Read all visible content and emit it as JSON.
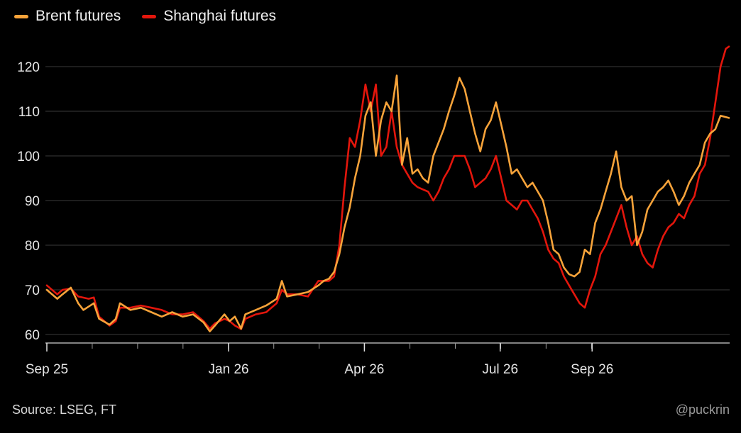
{
  "chart_data": {
    "type": "line",
    "title": "",
    "xlabel": "",
    "ylabel": "",
    "ylim": [
      58,
      126
    ],
    "yticks": [
      60,
      70,
      80,
      90,
      100,
      110,
      120
    ],
    "xticks": [
      {
        "label": "Sep 25",
        "week": 0
      },
      {
        "label": "Jan 26",
        "week": 17.4
      },
      {
        "label": "Apr 26",
        "week": 30.4
      },
      {
        "label": "Jul 26",
        "week": 43.4
      },
      {
        "label": "Sep 26",
        "week": 52.2
      }
    ],
    "x_unit": "weeks",
    "grid": true,
    "legend_position": "top-left",
    "series": [
      {
        "name": "Brent futures",
        "color": "#f7a33a",
        "points": [
          [
            0,
            70
          ],
          [
            1,
            68
          ],
          [
            1.5,
            69
          ],
          [
            2.3,
            70.5
          ],
          [
            3,
            67
          ],
          [
            3.5,
            65.5
          ],
          [
            4.5,
            67
          ],
          [
            5,
            63.5
          ],
          [
            6,
            62.2
          ],
          [
            6.6,
            63.5
          ],
          [
            7,
            67
          ],
          [
            8,
            65.5
          ],
          [
            9,
            66
          ],
          [
            10,
            65
          ],
          [
            11,
            64
          ],
          [
            12,
            65
          ],
          [
            13,
            64
          ],
          [
            14,
            64.5
          ],
          [
            15,
            62.7
          ],
          [
            15.6,
            60.7
          ],
          [
            16.1,
            62
          ],
          [
            17,
            64.5
          ],
          [
            17.5,
            63
          ],
          [
            18,
            64
          ],
          [
            18.6,
            61.3
          ],
          [
            19,
            64.5
          ],
          [
            20,
            65.5
          ],
          [
            21,
            66.5
          ],
          [
            22,
            68
          ],
          [
            22.5,
            72
          ],
          [
            23,
            68.5
          ],
          [
            24,
            69
          ],
          [
            25,
            69.5
          ],
          [
            26,
            71
          ],
          [
            26.5,
            72
          ],
          [
            27,
            72.5
          ],
          [
            27.5,
            74
          ],
          [
            28,
            78
          ],
          [
            28.5,
            84
          ],
          [
            29,
            88.5
          ],
          [
            29.5,
            95
          ],
          [
            30,
            100
          ],
          [
            30.5,
            109
          ],
          [
            31,
            112
          ],
          [
            31.5,
            100
          ],
          [
            32,
            108
          ],
          [
            32.5,
            112
          ],
          [
            33,
            110
          ],
          [
            33.5,
            118
          ],
          [
            34,
            98
          ],
          [
            34.5,
            104
          ],
          [
            35,
            96
          ],
          [
            35.5,
            97
          ],
          [
            36,
            95
          ],
          [
            36.5,
            94
          ],
          [
            37,
            100
          ],
          [
            37.5,
            103
          ],
          [
            38,
            106
          ],
          [
            38.5,
            110
          ],
          [
            39,
            113.5
          ],
          [
            39.5,
            117.5
          ],
          [
            40,
            115
          ],
          [
            40.5,
            110
          ],
          [
            41,
            105
          ],
          [
            41.5,
            101
          ],
          [
            42,
            106
          ],
          [
            42.5,
            108
          ],
          [
            43,
            112
          ],
          [
            43.5,
            107
          ],
          [
            44,
            102
          ],
          [
            44.5,
            96
          ],
          [
            45,
            97
          ],
          [
            45.5,
            95
          ],
          [
            46,
            93
          ],
          [
            46.5,
            94
          ],
          [
            47,
            92
          ],
          [
            47.5,
            90
          ],
          [
            48,
            85
          ],
          [
            48.5,
            79
          ],
          [
            49,
            78
          ],
          [
            49.5,
            75
          ],
          [
            50,
            73.5
          ],
          [
            50.5,
            73
          ],
          [
            51,
            74
          ],
          [
            51.5,
            79
          ],
          [
            52,
            78
          ],
          [
            52.5,
            85
          ],
          [
            53,
            88
          ],
          [
            53.5,
            92
          ],
          [
            54,
            96
          ],
          [
            54.5,
            101
          ],
          [
            55,
            93
          ],
          [
            55.5,
            90
          ],
          [
            56,
            91
          ],
          [
            56.5,
            80
          ],
          [
            57,
            83
          ],
          [
            57.5,
            88
          ],
          [
            58,
            90
          ],
          [
            58.5,
            92
          ],
          [
            59,
            93
          ],
          [
            59.5,
            94.5
          ],
          [
            60,
            92
          ],
          [
            60.5,
            89
          ],
          [
            61,
            91
          ],
          [
            61.5,
            94
          ],
          [
            62,
            96
          ],
          [
            62.5,
            98
          ],
          [
            63,
            103
          ],
          [
            63.5,
            105
          ],
          [
            64,
            106
          ],
          [
            64.5,
            109
          ],
          [
            65.3,
            108.5
          ]
        ]
      },
      {
        "name": "Shanghai futures",
        "color": "#e3160c",
        "points": [
          [
            0,
            71
          ],
          [
            1,
            69
          ],
          [
            1.5,
            70
          ],
          [
            2.3,
            70.3
          ],
          [
            3,
            68.5
          ],
          [
            4,
            68
          ],
          [
            4.5,
            68.3
          ],
          [
            5,
            64
          ],
          [
            6,
            62
          ],
          [
            6.6,
            63
          ],
          [
            7,
            66
          ],
          [
            8,
            66
          ],
          [
            9,
            66.5
          ],
          [
            10,
            66
          ],
          [
            11,
            65.5
          ],
          [
            12,
            64.5
          ],
          [
            13,
            64.5
          ],
          [
            14,
            65
          ],
          [
            15,
            63
          ],
          [
            15.6,
            61.3
          ],
          [
            16.1,
            62.5
          ],
          [
            17,
            63.5
          ],
          [
            17.5,
            63
          ],
          [
            18,
            62
          ],
          [
            18.6,
            61.2
          ],
          [
            19,
            63.5
          ],
          [
            20,
            64.5
          ],
          [
            21,
            65
          ],
          [
            22,
            67
          ],
          [
            22.5,
            70
          ],
          [
            23,
            69
          ],
          [
            24,
            69
          ],
          [
            25,
            68.5
          ],
          [
            26,
            72
          ],
          [
            27,
            72
          ],
          [
            27.5,
            73
          ],
          [
            28,
            80
          ],
          [
            28.5,
            93
          ],
          [
            29,
            104
          ],
          [
            29.5,
            102
          ],
          [
            30,
            108
          ],
          [
            30.5,
            116
          ],
          [
            31,
            110
          ],
          [
            31.5,
            116
          ],
          [
            32,
            100
          ],
          [
            32.5,
            102
          ],
          [
            33,
            110
          ],
          [
            33.5,
            102
          ],
          [
            34,
            98
          ],
          [
            34.5,
            96
          ],
          [
            35,
            94
          ],
          [
            35.5,
            93
          ],
          [
            36,
            92.5
          ],
          [
            36.5,
            92
          ],
          [
            37,
            90
          ],
          [
            37.5,
            92
          ],
          [
            38,
            95
          ],
          [
            38.5,
            97
          ],
          [
            39,
            100
          ],
          [
            39.5,
            100
          ],
          [
            40,
            100
          ],
          [
            40.5,
            97
          ],
          [
            41,
            93
          ],
          [
            41.5,
            94
          ],
          [
            42,
            95
          ],
          [
            42.5,
            97
          ],
          [
            43,
            100
          ],
          [
            43.5,
            95
          ],
          [
            44,
            90
          ],
          [
            44.5,
            89
          ],
          [
            45,
            88
          ],
          [
            45.5,
            90
          ],
          [
            46,
            90
          ],
          [
            46.5,
            88
          ],
          [
            47,
            86
          ],
          [
            47.5,
            83
          ],
          [
            48,
            79
          ],
          [
            48.5,
            77
          ],
          [
            49,
            76
          ],
          [
            49.5,
            73
          ],
          [
            50,
            71
          ],
          [
            50.5,
            69
          ],
          [
            51,
            67
          ],
          [
            51.5,
            66
          ],
          [
            52,
            70
          ],
          [
            52.5,
            73
          ],
          [
            53,
            78
          ],
          [
            53.5,
            80
          ],
          [
            54,
            83
          ],
          [
            54.5,
            86
          ],
          [
            55,
            89
          ],
          [
            55.5,
            84
          ],
          [
            56,
            80
          ],
          [
            56.5,
            82
          ],
          [
            57,
            78
          ],
          [
            57.5,
            76
          ],
          [
            58,
            75
          ],
          [
            58.5,
            79
          ],
          [
            59,
            82
          ],
          [
            59.5,
            84
          ],
          [
            60,
            85
          ],
          [
            60.5,
            87
          ],
          [
            61,
            86
          ],
          [
            61.5,
            89
          ],
          [
            62,
            91
          ],
          [
            62.5,
            96
          ],
          [
            63,
            98
          ],
          [
            63.5,
            104
          ],
          [
            64,
            112
          ],
          [
            64.5,
            120
          ],
          [
            65,
            124
          ],
          [
            65.3,
            124.5
          ]
        ]
      }
    ]
  },
  "legend": {
    "brent_label": "Brent futures",
    "shanghai_label": "Shanghai futures"
  },
  "footer": {
    "source": "Source: LSEG, FT",
    "credit": "@puckrin"
  }
}
